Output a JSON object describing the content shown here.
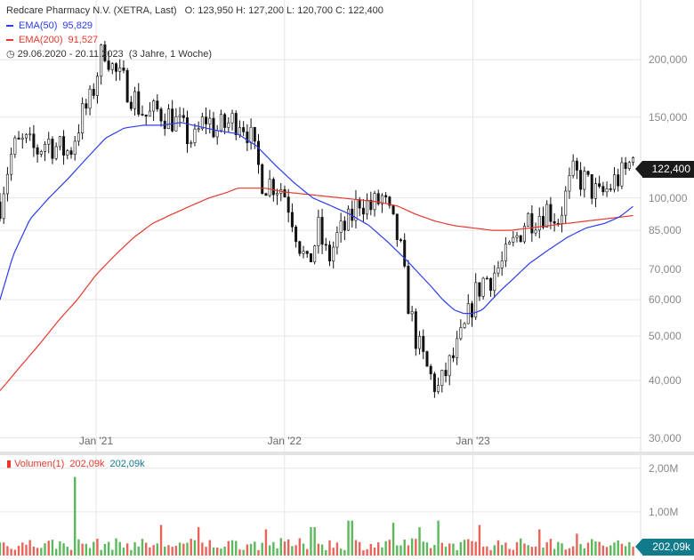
{
  "header": {
    "instrument": "Redcare Pharmacy N.V. (XETRA, Last)",
    "ohlc": "O: 123,950  H: 127,200  L: 120,700  C: 122,400",
    "ema50_label": "EMA(50)",
    "ema50_value": "95,829",
    "ema200_label": "EMA(200)",
    "ema200_value": "91,527",
    "range_text": "29.06.2020 - 20.11.2023",
    "range_span": "(3 Jahre, 1 Woche)"
  },
  "volume_header": {
    "label": "Volumen(1)",
    "value_red": "202,09k",
    "value_blue": "202,09k"
  },
  "price_tag": "122,400",
  "volume_tag": "202,09k",
  "colors": {
    "ema50": "#2b3cf0",
    "ema200": "#e8382d",
    "up": "#5cb85c",
    "down": "#e8645a",
    "grid": "#e6e6e6"
  },
  "chart_data": {
    "type": "candlestick",
    "y_scale": "log",
    "ylim": [
      28000,
      270000
    ],
    "y_ticks": [
      {
        "v": 200000,
        "label": "200,000"
      },
      {
        "v": 150000,
        "label": "150,000"
      },
      {
        "v": 100000,
        "label": "100,000"
      },
      {
        "v": 85000,
        "label": "85,000"
      },
      {
        "v": 70000,
        "label": "70,000"
      },
      {
        "v": 60000,
        "label": "60,000"
      },
      {
        "v": 50000,
        "label": "50,000"
      },
      {
        "v": 40000,
        "label": "40,000"
      },
      {
        "v": 30000,
        "label": "30,000"
      }
    ],
    "x_ticks": [
      "Jan '21",
      "Jan '22",
      "Jan '23"
    ],
    "close_path": [
      [
        2020.49,
        98000
      ],
      [
        2020.52,
        112000
      ],
      [
        2020.56,
        128000
      ],
      [
        2020.62,
        132000
      ],
      [
        2020.68,
        126000
      ],
      [
        2020.74,
        134000
      ],
      [
        2020.8,
        128000
      ],
      [
        2020.86,
        126000
      ],
      [
        2020.92,
        150000
      ],
      [
        2020.97,
        162000
      ],
      [
        2021.02,
        200000
      ],
      [
        2021.05,
        215000
      ],
      [
        2021.09,
        190000
      ],
      [
        2021.13,
        180000
      ],
      [
        2021.17,
        175000
      ],
      [
        2021.22,
        160000
      ],
      [
        2021.27,
        150000
      ],
      [
        2021.33,
        155000
      ],
      [
        2021.4,
        150000
      ],
      [
        2021.46,
        140000
      ],
      [
        2021.52,
        132000
      ],
      [
        2021.58,
        150000
      ],
      [
        2021.64,
        140000
      ],
      [
        2021.7,
        145000
      ],
      [
        2021.76,
        150000
      ],
      [
        2021.81,
        140000
      ],
      [
        2021.85,
        120000
      ],
      [
        2021.89,
        108000
      ],
      [
        2021.94,
        108000
      ],
      [
        2021.99,
        105000
      ],
      [
        2022.03,
        95000
      ],
      [
        2022.08,
        80000
      ],
      [
        2022.12,
        70000
      ],
      [
        2022.18,
        85000
      ],
      [
        2022.23,
        73000
      ],
      [
        2022.28,
        82000
      ],
      [
        2022.34,
        88000
      ],
      [
        2022.4,
        100000
      ],
      [
        2022.46,
        95000
      ],
      [
        2022.52,
        100000
      ],
      [
        2022.57,
        88000
      ],
      [
        2022.61,
        80000
      ],
      [
        2022.64,
        65000
      ],
      [
        2022.68,
        53000
      ],
      [
        2022.72,
        46000
      ],
      [
        2022.77,
        41000
      ],
      [
        2022.82,
        38000
      ],
      [
        2022.86,
        42000
      ],
      [
        2022.91,
        46000
      ],
      [
        2022.96,
        52000
      ],
      [
        2023.0,
        60000
      ],
      [
        2023.05,
        66000
      ],
      [
        2023.1,
        68000
      ],
      [
        2023.16,
        72000
      ],
      [
        2023.22,
        80000
      ],
      [
        2023.28,
        90000
      ],
      [
        2023.34,
        92000
      ],
      [
        2023.4,
        95000
      ],
      [
        2023.45,
        90000
      ],
      [
        2023.49,
        100000
      ],
      [
        2023.53,
        112000
      ],
      [
        2023.58,
        110000
      ],
      [
        2023.63,
        105000
      ],
      [
        2023.67,
        100000
      ],
      [
        2023.72,
        105000
      ],
      [
        2023.76,
        110000
      ],
      [
        2023.8,
        112000
      ],
      [
        2023.85,
        122400
      ]
    ],
    "ema50": [
      [
        2020.49,
        60000
      ],
      [
        2020.56,
        75000
      ],
      [
        2020.65,
        90000
      ],
      [
        2020.75,
        100000
      ],
      [
        2020.85,
        110000
      ],
      [
        2020.95,
        122000
      ],
      [
        2021.05,
        135000
      ],
      [
        2021.15,
        142000
      ],
      [
        2021.25,
        144000
      ],
      [
        2021.35,
        144000
      ],
      [
        2021.45,
        146000
      ],
      [
        2021.55,
        143000
      ],
      [
        2021.65,
        140000
      ],
      [
        2021.75,
        138000
      ],
      [
        2021.85,
        130000
      ],
      [
        2021.95,
        118000
      ],
      [
        2022.05,
        108000
      ],
      [
        2022.15,
        100000
      ],
      [
        2022.25,
        96000
      ],
      [
        2022.35,
        92000
      ],
      [
        2022.45,
        87000
      ],
      [
        2022.55,
        80000
      ],
      [
        2022.65,
        73000
      ],
      [
        2022.72,
        68000
      ],
      [
        2022.78,
        64000
      ],
      [
        2022.84,
        60000
      ],
      [
        2022.9,
        57000
      ],
      [
        2022.95,
        56000
      ],
      [
        2023.0,
        56000
      ],
      [
        2023.05,
        57000
      ],
      [
        2023.1,
        60000
      ],
      [
        2023.15,
        63000
      ],
      [
        2023.22,
        67000
      ],
      [
        2023.3,
        72000
      ],
      [
        2023.4,
        77000
      ],
      [
        2023.5,
        82000
      ],
      [
        2023.6,
        86000
      ],
      [
        2023.7,
        88000
      ],
      [
        2023.78,
        91000
      ],
      [
        2023.85,
        95829
      ]
    ],
    "ema200": [
      [
        2020.49,
        38000
      ],
      [
        2020.6,
        43000
      ],
      [
        2020.7,
        48000
      ],
      [
        2020.8,
        54000
      ],
      [
        2020.9,
        60000
      ],
      [
        2021.0,
        68000
      ],
      [
        2021.1,
        75000
      ],
      [
        2021.2,
        82000
      ],
      [
        2021.3,
        88000
      ],
      [
        2021.4,
        92000
      ],
      [
        2021.5,
        96000
      ],
      [
        2021.6,
        100000
      ],
      [
        2021.7,
        103000
      ],
      [
        2021.75,
        105000
      ],
      [
        2021.8,
        105000
      ],
      [
        2021.9,
        105000
      ],
      [
        2022.0,
        103000
      ],
      [
        2022.1,
        102000
      ],
      [
        2022.2,
        101000
      ],
      [
        2022.3,
        100000
      ],
      [
        2022.4,
        99000
      ],
      [
        2022.5,
        98000
      ],
      [
        2022.6,
        96000
      ],
      [
        2022.7,
        92000
      ],
      [
        2022.8,
        89000
      ],
      [
        2022.9,
        87000
      ],
      [
        2023.0,
        86000
      ],
      [
        2023.1,
        85000
      ],
      [
        2023.2,
        85000
      ],
      [
        2023.3,
        86000
      ],
      [
        2023.4,
        87000
      ],
      [
        2023.5,
        88000
      ],
      [
        2023.6,
        89000
      ],
      [
        2023.7,
        90000
      ],
      [
        2023.8,
        91000
      ],
      [
        2023.85,
        91527
      ]
    ],
    "volume": {
      "ylim": [
        0,
        2300000
      ],
      "y_ticks": [
        {
          "v": 2000000,
          "label": "2,00M"
        },
        {
          "v": 1000000,
          "label": "1,00M"
        }
      ],
      "spikes": [
        [
          2020.89,
          1800000
        ],
        [
          2021.34,
          700000
        ],
        [
          2021.55,
          650000
        ],
        [
          2021.9,
          600000
        ],
        [
          2022.15,
          650000
        ],
        [
          2022.35,
          800000
        ],
        [
          2022.58,
          750000
        ],
        [
          2022.72,
          650000
        ],
        [
          2022.82,
          800000
        ],
        [
          2023.03,
          700000
        ],
        [
          2023.35,
          600000
        ],
        [
          2023.55,
          500000
        ],
        [
          2023.85,
          202090
        ]
      ]
    }
  }
}
